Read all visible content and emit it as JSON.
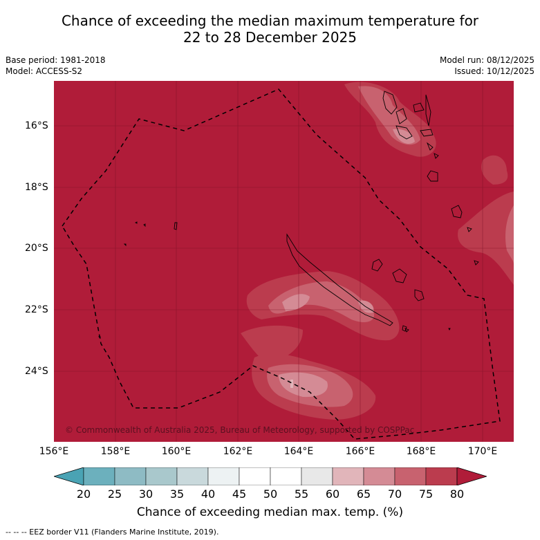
{
  "title": {
    "line1": "Chance of exceeding the median maximum temperature for",
    "line2": "22 to 28 December 2025"
  },
  "meta_left": {
    "base_period": "Base period: 1981-2018",
    "model": "Model: ACCESS-S2"
  },
  "meta_right": {
    "model_run": "Model run: 08/12/2025",
    "issued": "Issued: 10/12/2025"
  },
  "map": {
    "copyright": "© Commonwealth of Australia 2025, Bureau of Meteorology, supported by COSPPac",
    "y_ticks": [
      "16°S",
      "18°S",
      "20°S",
      "22°S",
      "24°S"
    ],
    "x_ticks": [
      "156°E",
      "158°E",
      "160°E",
      "162°E",
      "164°E",
      "166°E",
      "168°E",
      "170°E"
    ],
    "background_color": "#b01c39"
  },
  "colorbar": {
    "ticks": [
      "20",
      "25",
      "30",
      "35",
      "40",
      "45",
      "50",
      "55",
      "60",
      "65",
      "70",
      "75",
      "80"
    ],
    "label": "Chance of exceeding median max. temp. (%)",
    "colors": [
      "#4aa3b4",
      "#6cb0bd",
      "#8ebbc4",
      "#a9c8cc",
      "#c9d9dc",
      "#edf2f3",
      "#ffffff",
      "#ffffff",
      "#e8e8e8",
      "#e1b5ba",
      "#d48b95",
      "#c8626f",
      "#bb3c4e",
      "#b01c39"
    ]
  },
  "footer": {
    "text": "--  --  -- EEZ border V11 (Flanders Marine Institute, 2019)."
  }
}
